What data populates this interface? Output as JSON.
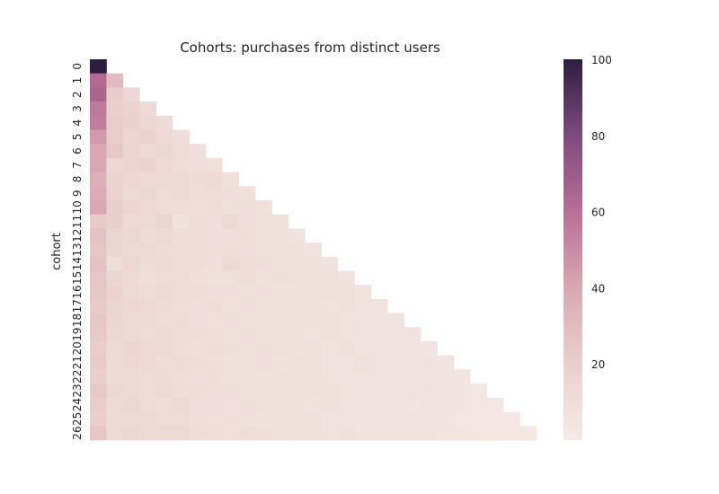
{
  "chart_data": {
    "type": "heatmap",
    "title": "Cohorts:  purchases from distinct users",
    "ylabel": "cohort",
    "xlabel": "",
    "y_categories": [
      "0",
      "1",
      "2",
      "3",
      "4",
      "5",
      "6",
      "7",
      "8",
      "9",
      "10",
      "11",
      "12",
      "13",
      "14",
      "15",
      "16",
      "17",
      "18",
      "19",
      "20",
      "21",
      "22",
      "23",
      "24",
      "25",
      "26"
    ],
    "colorbar": {
      "min": 0,
      "max": 100,
      "ticks": [
        20,
        40,
        60,
        80,
        100
      ]
    },
    "colors": {
      "low": "#f4ebe6",
      "mid": "#c67f9e",
      "high": "#2d1e3e"
    },
    "rows": [
      [
        100
      ],
      [
        62,
        30
      ],
      [
        65,
        21,
        14
      ],
      [
        56,
        20,
        17,
        12
      ],
      [
        55,
        21,
        18,
        14,
        11
      ],
      [
        45,
        21,
        15,
        18,
        13,
        10
      ],
      [
        40,
        24,
        16,
        13,
        14,
        11,
        9
      ],
      [
        40,
        14,
        16,
        17,
        13,
        10,
        9,
        8
      ],
      [
        36,
        17,
        14,
        13,
        12,
        13,
        11,
        12,
        7
      ],
      [
        38,
        17,
        13,
        14,
        11,
        12,
        10,
        11,
        9,
        8
      ],
      [
        40,
        20,
        15,
        13,
        11,
        10,
        9,
        10,
        8,
        9,
        7
      ],
      [
        22,
        20,
        13,
        12,
        15,
        7,
        11,
        9,
        12,
        9,
        8,
        7
      ],
      [
        26,
        16,
        14,
        11,
        12,
        10,
        10,
        9,
        9,
        10,
        8,
        7,
        6
      ],
      [
        24,
        15,
        13,
        12,
        11,
        11,
        10,
        9,
        10,
        9,
        8,
        8,
        7,
        6
      ],
      [
        27,
        10,
        14,
        11,
        12,
        11,
        10,
        9,
        12,
        11,
        9,
        8,
        7,
        7,
        6
      ],
      [
        25,
        15,
        12,
        9,
        11,
        11,
        9,
        7,
        8,
        10,
        8,
        9,
        8,
        7,
        7,
        6
      ],
      [
        24,
        17,
        13,
        11,
        12,
        10,
        10,
        9,
        9,
        8,
        9,
        8,
        7,
        8,
        7,
        7,
        6
      ],
      [
        22,
        16,
        14,
        12,
        11,
        10,
        9,
        10,
        8,
        9,
        8,
        8,
        7,
        7,
        6,
        7,
        6,
        5
      ],
      [
        24,
        16,
        13,
        12,
        10,
        11,
        9,
        8,
        9,
        8,
        8,
        7,
        8,
        7,
        7,
        6,
        6,
        6,
        5
      ],
      [
        23,
        14,
        13,
        11,
        12,
        10,
        10,
        9,
        8,
        9,
        8,
        8,
        7,
        6,
        7,
        6,
        6,
        5,
        5,
        5
      ],
      [
        21,
        13,
        15,
        12,
        13,
        10,
        9,
        10,
        9,
        8,
        9,
        8,
        7,
        7,
        6,
        7,
        6,
        6,
        5,
        5,
        4
      ],
      [
        22,
        13,
        14,
        12,
        10,
        11,
        10,
        9,
        8,
        8,
        9,
        7,
        8,
        7,
        6,
        6,
        7,
        6,
        5,
        5,
        5,
        4
      ],
      [
        20,
        13,
        12,
        11,
        11,
        10,
        9,
        10,
        8,
        8,
        7,
        8,
        7,
        7,
        6,
        6,
        5,
        6,
        5,
        5,
        4,
        4,
        4
      ],
      [
        23,
        14,
        13,
        11,
        12,
        10,
        10,
        9,
        9,
        8,
        8,
        7,
        8,
        7,
        7,
        6,
        6,
        5,
        6,
        5,
        5,
        4,
        4,
        3
      ],
      [
        21,
        12,
        14,
        11,
        10,
        12,
        9,
        9,
        8,
        9,
        8,
        7,
        7,
        6,
        7,
        6,
        5,
        6,
        5,
        4,
        5,
        4,
        4,
        3,
        3
      ],
      [
        20,
        13,
        12,
        12,
        11,
        11,
        9,
        8,
        9,
        8,
        7,
        8,
        7,
        7,
        6,
        6,
        6,
        5,
        5,
        5,
        4,
        4,
        3,
        3,
        3,
        2
      ],
      [
        24,
        13,
        14,
        12,
        12,
        13,
        10,
        9,
        8,
        10,
        9,
        8,
        7,
        7,
        6,
        7,
        6,
        5,
        5,
        5,
        5,
        4,
        4,
        3,
        3,
        2,
        2
      ]
    ]
  }
}
